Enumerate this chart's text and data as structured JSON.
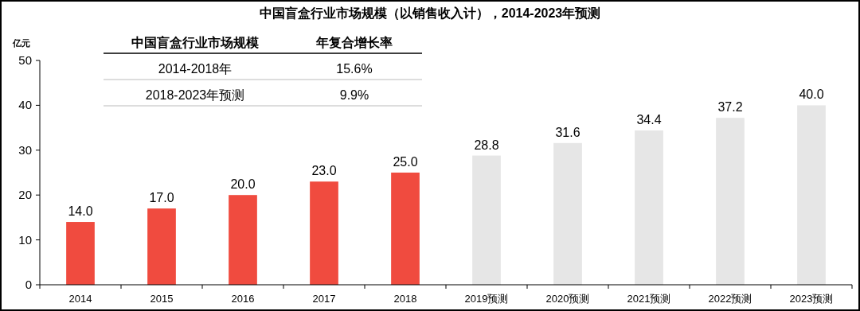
{
  "chart_data": {
    "type": "bar",
    "title": "中国盲盒行业市场规模（以销售收入计），2014-2023年预测",
    "ylabel": "亿元",
    "categories": [
      "2014",
      "2015",
      "2016",
      "2017",
      "2018",
      "2019预测",
      "2020预测",
      "2021预测",
      "2022预测",
      "2023预测"
    ],
    "values": [
      14.0,
      17.0,
      20.0,
      23.0,
      25.0,
      28.8,
      31.6,
      34.4,
      37.2,
      40.0
    ],
    "colors": [
      "#f04b3f",
      "#f04b3f",
      "#f04b3f",
      "#f04b3f",
      "#f04b3f",
      "#e6e6e6",
      "#e6e6e6",
      "#e6e6e6",
      "#e6e6e6",
      "#e6e6e6"
    ],
    "value_labels": [
      "14.0",
      "17.0",
      "20.0",
      "23.0",
      "25.0",
      "28.8",
      "31.6",
      "34.4",
      "37.2",
      "40.0"
    ],
    "ylim": [
      0,
      50
    ],
    "yticks": [
      0,
      10,
      20,
      30,
      40,
      50
    ],
    "grid": false,
    "annotations": [
      "中国盲盒行业市场规模",
      "年复合增长率",
      "2014-2018年",
      "15.6%",
      "2018-2023年预测",
      "9.9%"
    ]
  }
}
